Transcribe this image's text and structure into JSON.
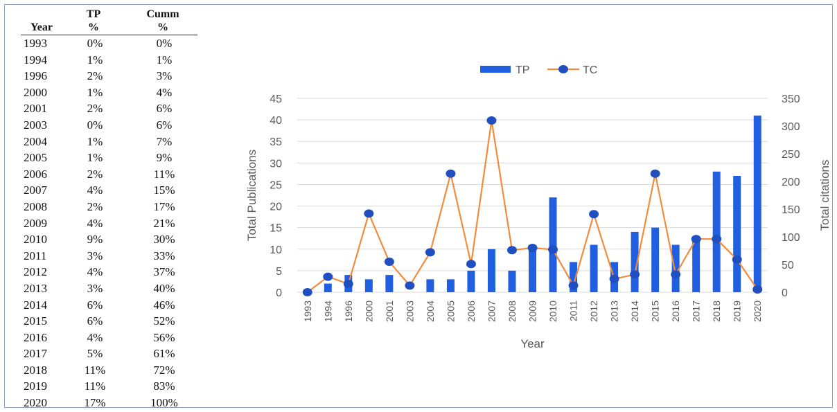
{
  "table": {
    "headers": {
      "year": "Year",
      "tp_top": "TP",
      "tp_bottom": "%",
      "cumm_top": "Cumm",
      "cumm_bottom": "%"
    },
    "rows": [
      {
        "year": "1993",
        "tp": "0%",
        "cumm": "0%"
      },
      {
        "year": "1994",
        "tp": "1%",
        "cumm": "1%"
      },
      {
        "year": "1996",
        "tp": "2%",
        "cumm": "3%"
      },
      {
        "year": "2000",
        "tp": "1%",
        "cumm": "4%"
      },
      {
        "year": "2001",
        "tp": "2%",
        "cumm": "6%"
      },
      {
        "year": "2003",
        "tp": "0%",
        "cumm": "6%"
      },
      {
        "year": "2004",
        "tp": "1%",
        "cumm": "7%"
      },
      {
        "year": "2005",
        "tp": "1%",
        "cumm": "9%"
      },
      {
        "year": "2006",
        "tp": "2%",
        "cumm": "11%"
      },
      {
        "year": "2007",
        "tp": "4%",
        "cumm": "15%"
      },
      {
        "year": "2008",
        "tp": "2%",
        "cumm": "17%"
      },
      {
        "year": "2009",
        "tp": "4%",
        "cumm": "21%"
      },
      {
        "year": "2010",
        "tp": "9%",
        "cumm": "30%"
      },
      {
        "year": "2011",
        "tp": "3%",
        "cumm": "33%"
      },
      {
        "year": "2012",
        "tp": "4%",
        "cumm": "37%"
      },
      {
        "year": "2013",
        "tp": "3%",
        "cumm": "40%"
      },
      {
        "year": "2014",
        "tp": "6%",
        "cumm": "46%"
      },
      {
        "year": "2015",
        "tp": "6%",
        "cumm": "52%"
      },
      {
        "year": "2016",
        "tp": "4%",
        "cumm": "56%"
      },
      {
        "year": "2017",
        "tp": "5%",
        "cumm": "61%"
      },
      {
        "year": "2018",
        "tp": "11%",
        "cumm": "72%"
      },
      {
        "year": "2019",
        "tp": "11%",
        "cumm": "83%"
      },
      {
        "year": "2020",
        "tp": "17%",
        "cumm": "100%"
      }
    ]
  },
  "chart_data": {
    "type": "bar",
    "categories": [
      "1993",
      "1994",
      "1996",
      "2000",
      "2001",
      "2003",
      "2004",
      "2005",
      "2006",
      "2007",
      "2008",
      "2009",
      "2010",
      "2011",
      "2012",
      "2013",
      "2014",
      "2015",
      "2016",
      "2017",
      "2018",
      "2019",
      "2020"
    ],
    "series": [
      {
        "name": "TP",
        "type": "bar",
        "axis": "left",
        "color": "#1f5fe0",
        "values": [
          0,
          2,
          4,
          3,
          4,
          0,
          3,
          3,
          5,
          10,
          5,
          10,
          22,
          7,
          11,
          7,
          14,
          15,
          11,
          13,
          28,
          27,
          41
        ]
      },
      {
        "name": "TC",
        "type": "line",
        "axis": "right",
        "color": "#f28c3c",
        "marker_color": "#1f4fc0",
        "values": [
          0,
          28,
          15,
          142,
          55,
          12,
          72,
          214,
          51,
          310,
          76,
          80,
          77,
          12,
          141,
          24,
          32,
          214,
          32,
          96,
          96,
          59,
          5
        ]
      }
    ],
    "xlabel": "Year",
    "ylabel": "Total Publications",
    "y2label": "Total citations",
    "ylim": [
      0,
      45
    ],
    "y2lim": [
      0,
      350
    ],
    "yticks": [
      "0",
      "5",
      "10",
      "15",
      "20",
      "25",
      "30",
      "35",
      "40",
      "45"
    ],
    "y2ticks": [
      "0",
      "50",
      "100",
      "150",
      "200",
      "250",
      "300",
      "350"
    ],
    "grid": true,
    "legend": "top-center"
  }
}
